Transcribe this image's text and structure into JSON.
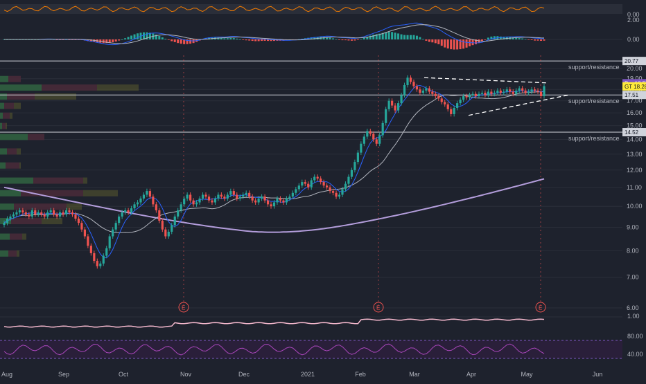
{
  "colors": {
    "background": "#1e222d",
    "grid": "#2a2e39",
    "up": "#26a69a",
    "down": "#ef5350",
    "support_line": "#d1d4dc",
    "ema_fast": "#2962ff",
    "sma_mid": "#b2b5be",
    "sma_slow": "#b39ddb",
    "earnings_marker": "#ef5350",
    "pre_badge": "#7e57c2",
    "gt_badge": "#ffeb3b",
    "text_light": "#b2b5be"
  },
  "header_axis": {
    "top_value": "0.00"
  },
  "macd": {
    "axis_labels": [
      "2.00",
      "0.00"
    ]
  },
  "lower_axis": {
    "bottom_values": [
      "1.00"
    ]
  },
  "rsi": {
    "axis_labels": [
      "80.00",
      "40.00"
    ]
  },
  "chart_data": {
    "type": "candlestick",
    "title": "",
    "x_axis": {
      "tick_labels": [
        "Aug",
        "Sep",
        "Oct",
        "Nov",
        "Dec",
        "2021",
        "Feb",
        "Mar",
        "Apr",
        "May",
        "Jun"
      ]
    },
    "y_axis": {
      "range": [
        5.5,
        21.5
      ],
      "scale": "log",
      "tick_labels": [
        "20.00",
        "19.00",
        "18.00",
        "17.00",
        "16.00",
        "15.00",
        "14.00",
        "13.00",
        "12.00",
        "11.00",
        "10.00",
        "9.00",
        "8.00",
        "7.00",
        "6.00"
      ],
      "tick_values": [
        20,
        19,
        18,
        17,
        16,
        15,
        14,
        13,
        12,
        11,
        10,
        9,
        8,
        7,
        6
      ]
    },
    "price_labels": [
      {
        "label": "20.77",
        "value": 20.77
      },
      {
        "label": "Pre",
        "text": "18.57",
        "value": 18.57
      },
      {
        "label": "GT",
        "text": "18.28",
        "value": 18.28
      },
      {
        "label": "17.51",
        "value": 17.51
      },
      {
        "label": "14.52",
        "value": 14.52
      }
    ],
    "support_resistance": [
      {
        "label": "support/resistance",
        "value": 20.77
      },
      {
        "label": "support/resistance",
        "value": 17.51
      },
      {
        "label": "support/resistance",
        "value": 14.52
      }
    ],
    "earnings_markers": [
      {
        "label": "E",
        "date": "Nov"
      },
      {
        "label": "E",
        "date": "Feb"
      },
      {
        "label": "E",
        "date": "May"
      }
    ],
    "close_series": [
      9.2,
      9.4,
      9.5,
      9.6,
      9.7,
      9.8,
      9.7,
      9.6,
      9.5,
      9.8,
      9.6,
      9.7,
      9.6,
      9.5,
      9.7,
      9.8,
      9.6,
      9.5,
      9.7,
      9.6,
      9.8,
      9.7,
      9.6,
      9.4,
      9.2,
      8.9,
      8.6,
      8.2,
      7.9,
      7.6,
      7.4,
      7.5,
      7.8,
      8.1,
      8.6,
      8.9,
      9.2,
      9.5,
      9.7,
      9.8,
      9.7,
      9.9,
      10.1,
      10.2,
      10.4,
      10.6,
      10.8,
      10.5,
      10.1,
      9.8,
      9.3,
      8.9,
      8.6,
      8.8,
      9.1,
      9.5,
      9.8,
      10.1,
      10.4,
      10.6,
      10.3,
      10.1,
      10.2,
      10.4,
      10.6,
      10.5,
      10.3,
      10.2,
      10.4,
      10.6,
      10.5,
      10.4,
      10.6,
      10.8,
      10.6,
      10.4,
      10.5,
      10.6,
      10.7,
      10.5,
      10.3,
      10.2,
      10.4,
      10.5,
      10.3,
      10.1,
      10.0,
      10.2,
      10.4,
      10.3,
      10.2,
      10.4,
      10.5,
      10.7,
      10.9,
      11.1,
      11.3,
      11.2,
      11.0,
      11.4,
      11.6,
      11.5,
      11.3,
      11.1,
      11.0,
      10.8,
      10.7,
      10.5,
      10.6,
      10.9,
      11.2,
      11.6,
      12.0,
      12.5,
      13.1,
      13.7,
      14.2,
      14.6,
      14.4,
      14.0,
      13.7,
      14.3,
      15.2,
      16.3,
      17.0,
      16.6,
      16.2,
      16.8,
      17.5,
      18.4,
      19.1,
      18.7,
      18.3,
      18.0,
      17.7,
      17.9,
      18.1,
      17.8,
      17.6,
      17.4,
      17.2,
      16.9,
      16.7,
      16.3,
      15.9,
      16.4,
      16.8,
      17.1,
      17.4,
      17.3,
      17.5,
      17.6,
      17.4,
      17.6,
      17.7,
      17.5,
      17.8,
      17.6,
      17.7,
      17.9,
      17.7,
      17.8,
      18.0,
      17.8,
      17.6,
      17.9,
      18.1,
      17.9,
      17.7,
      17.8,
      18.0,
      17.9,
      17.8,
      17.4,
      18.3
    ]
  }
}
